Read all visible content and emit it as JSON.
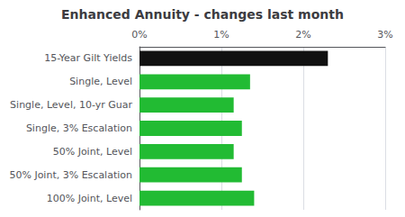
{
  "chart_data": {
    "type": "bar",
    "orientation": "horizontal",
    "title": "Enhanced Annuity - changes last month",
    "categories": [
      "100% Joint, Level",
      "50% Joint, 3% Escalation",
      "50% Joint, Level",
      "Single, 3% Escalation",
      "Single, Level, 10-yr Guar",
      "Single, Level",
      "15-Year Gilt Yields"
    ],
    "values": [
      1.4,
      1.25,
      1.15,
      1.25,
      1.15,
      1.35,
      2.3
    ],
    "colors": [
      "#22bb33",
      "#22bb33",
      "#22bb33",
      "#22bb33",
      "#22bb33",
      "#22bb33",
      "#111111"
    ],
    "xlim": [
      0,
      3
    ],
    "xticks": [
      {
        "value": 0,
        "label": "0%"
      },
      {
        "value": 1,
        "label": "1%"
      },
      {
        "value": 2,
        "label": "2%"
      },
      {
        "value": 3,
        "label": "3%"
      }
    ],
    "grid": true
  }
}
